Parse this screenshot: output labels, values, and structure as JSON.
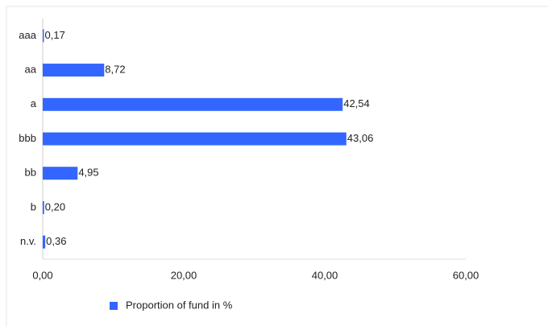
{
  "chart_data": {
    "type": "hbar",
    "categories": [
      "aaa",
      "aa",
      "a",
      "bbb",
      "bb",
      "b",
      "n.v."
    ],
    "series": [
      {
        "name": "Proportion of fund in %",
        "color": "#3366ff",
        "values": [
          0.17,
          8.72,
          42.54,
          43.06,
          4.95,
          0.2,
          0.36
        ],
        "value_labels": [
          "0,17",
          "8,72",
          "42,54",
          "43,06",
          "4,95",
          "0,20",
          "0,36"
        ]
      }
    ],
    "xlim": [
      0,
      60
    ],
    "xticks": [
      {
        "value": 0,
        "label": "0,00"
      },
      {
        "value": 20,
        "label": "20,00"
      },
      {
        "value": 40,
        "label": "40,00"
      },
      {
        "value": 60,
        "label": "60,00"
      }
    ],
    "legend": "bottom"
  }
}
